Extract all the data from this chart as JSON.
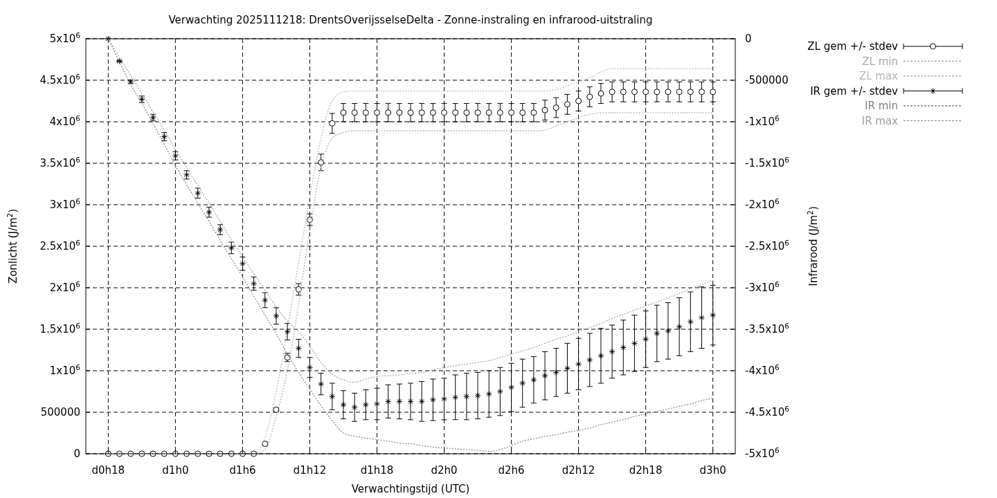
{
  "chart_data": {
    "type": "scatter",
    "title": "Verwachting 2025111218: DrentsOverijsselseDelta - Zonne-instraling en infrarood-uitstraling",
    "xlabel": "Verwachtingstijd (UTC)",
    "ylabel": "Zonlicht (J/m$^{2}$)",
    "y2label": "Infrarood (J/m$^{2}$)",
    "categories": [
      "d0h18",
      null,
      null,
      null,
      null,
      null,
      "d1h0",
      null,
      null,
      null,
      null,
      null,
      "d1h6",
      null,
      null,
      null,
      null,
      null,
      "d1h12",
      null,
      null,
      null,
      null,
      null,
      "d1h18",
      null,
      null,
      null,
      null,
      null,
      "d2h0",
      null,
      null,
      null,
      null,
      null,
      "d2h6",
      null,
      null,
      null,
      null,
      null,
      "d2h12",
      null,
      null,
      null,
      null,
      null,
      "d2h18",
      null,
      null,
      null,
      null,
      null,
      "d3h0"
    ],
    "ylim": [
      0,
      5000000
    ],
    "yticks": [
      0,
      500000,
      {
        "value": 1000000,
        "label": "1x10$^{6}$"
      },
      {
        "value": 1500000,
        "label": "1.5x10$^{6}$"
      },
      {
        "value": 2000000,
        "label": "2x10$^{6}$"
      },
      {
        "value": 2500000,
        "label": "2.5x10$^{6}$"
      },
      {
        "value": 3000000,
        "label": "3x10$^{6}$"
      },
      {
        "value": 3500000,
        "label": "3.5x10$^{6}$"
      },
      {
        "value": 4000000,
        "label": "4x10$^{6}$"
      },
      {
        "value": 4500000,
        "label": "4.5x10$^{6}$"
      },
      {
        "value": 5000000,
        "label": "5x10$^{6}$"
      }
    ],
    "y2lim": [
      -5000000,
      0
    ],
    "y2ticks": [
      {
        "value": -5000000,
        "label": "-5x10$^{6}$"
      },
      {
        "value": -4500000,
        "label": "-4.5x10$^{6}$"
      },
      {
        "value": -4000000,
        "label": "-4x10$^{6}$"
      },
      {
        "value": -3500000,
        "label": "-3.5x10$^{6}$"
      },
      {
        "value": -3000000,
        "label": "-3x10$^{6}$"
      },
      {
        "value": -2500000,
        "label": "-2.5x10$^{6}$"
      },
      {
        "value": -2000000,
        "label": "-2x10$^{6}$"
      },
      {
        "value": -1500000,
        "label": "-1.5x10$^{6}$"
      },
      {
        "value": -1000000,
        "label": "-1x10$^{6}$"
      },
      -500000,
      0
    ],
    "grid": true,
    "legend": "top right",
    "series": [
      {
        "name": "ZL gem +/- stdev",
        "marker": "circle",
        "color": "#000000",
        "values": [
          0,
          0,
          0,
          0,
          0,
          0,
          0,
          0,
          0,
          0,
          0,
          0,
          0,
          0,
          120000,
          530000,
          1160000,
          1980000,
          2820000,
          3510000,
          3980000,
          4110000,
          4110000,
          4110000,
          4110000,
          4110000,
          4110000,
          4110000,
          4110000,
          4110000,
          4110000,
          4110000,
          4110000,
          4110000,
          4110000,
          4110000,
          4110000,
          4110000,
          4110000,
          4140000,
          4170000,
          4210000,
          4250000,
          4300000,
          4340000,
          4360000,
          4360000,
          4360000,
          4360000,
          4360000,
          4360000,
          4360000,
          4360000,
          4360000,
          4360000
        ],
        "errors": [
          null,
          null,
          null,
          null,
          null,
          null,
          null,
          null,
          null,
          null,
          null,
          null,
          null,
          null,
          20000,
          20000,
          50000,
          70000,
          70000,
          100000,
          120000,
          110000,
          110000,
          110000,
          110000,
          110000,
          110000,
          110000,
          110000,
          110000,
          110000,
          110000,
          110000,
          110000,
          110000,
          110000,
          110000,
          110000,
          110000,
          120000,
          120000,
          120000,
          120000,
          120000,
          120000,
          120000,
          120000,
          120000,
          120000,
          120000,
          120000,
          120000,
          120000,
          120000,
          120000
        ]
      },
      {
        "name": "ZL min",
        "type": "line",
        "line_style": "dotted",
        "color": "#aaaaaa",
        "values": [
          0,
          0,
          0,
          0,
          0,
          0,
          0,
          0,
          0,
          0,
          0,
          0,
          0,
          0,
          50000,
          450000,
          1000000,
          1800000,
          2700000,
          3450000,
          3800000,
          3870000,
          3890000,
          3890000,
          3890000,
          3890000,
          3890000,
          3890000,
          3890000,
          3890000,
          3890000,
          3890000,
          3890000,
          3890000,
          3890000,
          3890000,
          3890000,
          3890000,
          3890000,
          3900000,
          3950000,
          4000000,
          4050000,
          4090000,
          4110000,
          4110000,
          4110000,
          4110000,
          4110000,
          4110000,
          4110000,
          4110000,
          4110000,
          4110000,
          4110000
        ]
      },
      {
        "name": "ZL max",
        "type": "line",
        "line_style": "dotted",
        "color": "#b4b4b4",
        "values": [
          0,
          0,
          0,
          0,
          0,
          0,
          0,
          0,
          0,
          0,
          0,
          0,
          0,
          0,
          200000,
          750000,
          1500000,
          2300000,
          3100000,
          3800000,
          4250000,
          4360000,
          4370000,
          4370000,
          4370000,
          4370000,
          4370000,
          4370000,
          4370000,
          4370000,
          4370000,
          4370000,
          4370000,
          4370000,
          4370000,
          4370000,
          4370000,
          4370000,
          4370000,
          4370000,
          4390000,
          4430000,
          4480000,
          4530000,
          4600000,
          4640000,
          4640000,
          4640000,
          4640000,
          4640000,
          4640000,
          4640000,
          4640000,
          4640000,
          4640000
        ]
      },
      {
        "name": "IR gem +/- stdev",
        "marker": "cross",
        "axis": "y2",
        "color": "#000000",
        "values": [
          0,
          -270000,
          -520000,
          -730000,
          -950000,
          -1180000,
          -1410000,
          -1640000,
          -1860000,
          -2090000,
          -2300000,
          -2520000,
          -2710000,
          -2950000,
          -3150000,
          -3340000,
          -3530000,
          -3730000,
          -3960000,
          -4160000,
          -4310000,
          -4410000,
          -4440000,
          -4410000,
          -4400000,
          -4370000,
          -4370000,
          -4370000,
          -4370000,
          -4350000,
          -4340000,
          -4320000,
          -4310000,
          -4300000,
          -4280000,
          -4250000,
          -4200000,
          -4150000,
          -4110000,
          -4060000,
          -4020000,
          -3970000,
          -3920000,
          -3870000,
          -3820000,
          -3770000,
          -3720000,
          -3670000,
          -3620000,
          -3550000,
          -3520000,
          -3470000,
          -3410000,
          -3360000,
          -3330000
        ],
        "errors": [
          null,
          10000,
          20000,
          40000,
          40000,
          50000,
          50000,
          50000,
          60000,
          60000,
          60000,
          70000,
          80000,
          80000,
          90000,
          100000,
          100000,
          110000,
          120000,
          130000,
          160000,
          170000,
          170000,
          180000,
          190000,
          200000,
          210000,
          220000,
          240000,
          250000,
          250000,
          270000,
          280000,
          280000,
          280000,
          290000,
          290000,
          290000,
          280000,
          290000,
          290000,
          300000,
          310000,
          320000,
          330000,
          320000,
          330000,
          340000,
          340000,
          340000,
          340000,
          350000,
          360000,
          370000,
          360000
        ]
      },
      {
        "name": "IR min",
        "type": "line",
        "line_style": "dotted",
        "axis": "y2",
        "color": "#808080",
        "values": [
          0,
          -280000,
          -550000,
          -780000,
          -1020000,
          -1270000,
          -1530000,
          -1760000,
          -1980000,
          -2200000,
          -2430000,
          -2650000,
          -2870000,
          -3100000,
          -3330000,
          -3550000,
          -3800000,
          -4020000,
          -4220000,
          -4420000,
          -4600000,
          -4750000,
          -4790000,
          -4810000,
          -4830000,
          -4850000,
          -4870000,
          -4880000,
          -4900000,
          -4920000,
          -4930000,
          -4940000,
          -4950000,
          -4960000,
          -4970000,
          -4950000,
          -4900000,
          -4850000,
          -4820000,
          -4790000,
          -4770000,
          -4740000,
          -4720000,
          -4690000,
          -4650000,
          -4620000,
          -4590000,
          -4550000,
          -4520000,
          -4490000,
          -4460000,
          -4430000,
          -4400000,
          -4360000,
          -4330000
        ]
      },
      {
        "name": "IR max",
        "type": "line",
        "line_style": "dotted",
        "axis": "y2",
        "color": "#9e9e9e",
        "values": [
          0,
          -220000,
          -440000,
          -660000,
          -880000,
          -1100000,
          -1330000,
          -1550000,
          -1770000,
          -1980000,
          -2200000,
          -2420000,
          -2630000,
          -2830000,
          -3030000,
          -3230000,
          -3400000,
          -3530000,
          -3700000,
          -3900000,
          -4040000,
          -4110000,
          -4140000,
          -4100000,
          -4070000,
          -4060000,
          -4050000,
          -4030000,
          -4020000,
          -3990000,
          -3960000,
          -3940000,
          -3920000,
          -3900000,
          -3880000,
          -3840000,
          -3800000,
          -3760000,
          -3720000,
          -3670000,
          -3620000,
          -3580000,
          -3530000,
          -3480000,
          -3430000,
          -3370000,
          -3320000,
          -3270000,
          -3220000,
          -3170000,
          -3120000,
          -3070000,
          -3010000,
          -2960000,
          -2910000
        ]
      }
    ]
  }
}
